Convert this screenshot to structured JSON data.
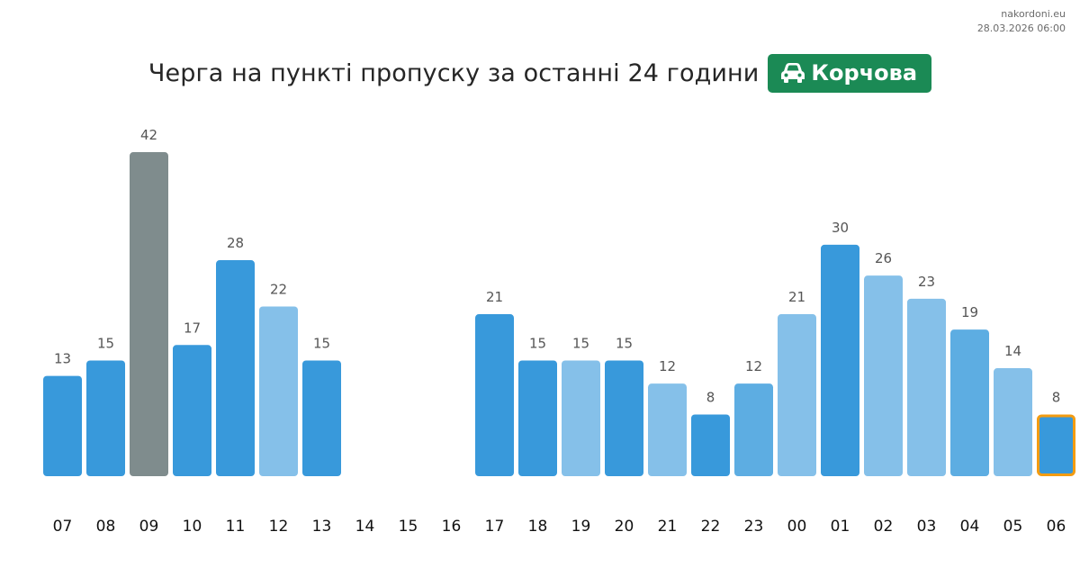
{
  "source": {
    "site": "nakordoni.eu",
    "timestamp": "28.03.2026 06:00"
  },
  "header": {
    "title": "Черга на пункті пропуску за останні 24 години",
    "badge_icon": "car-icon",
    "badge_label": "Корчова",
    "badge_color": "#1b8a55"
  },
  "chart_data": {
    "type": "bar",
    "title": "Черга на пункті пропуску за останні 24 години",
    "xlabel": "",
    "ylabel": "",
    "grid": false,
    "legend": "none",
    "categories": [
      "07",
      "08",
      "09",
      "10",
      "11",
      "12",
      "13",
      "14",
      "15",
      "16",
      "17",
      "18",
      "19",
      "20",
      "21",
      "22",
      "23",
      "00",
      "01",
      "02",
      "03",
      "04",
      "05",
      "06"
    ],
    "values": [
      13,
      15,
      42,
      17,
      28,
      22,
      15,
      null,
      null,
      null,
      21,
      15,
      15,
      15,
      12,
      8,
      12,
      21,
      30,
      26,
      23,
      19,
      14,
      8
    ],
    "bar_colors": [
      "#3899db",
      "#3899db",
      "#7f8c8d",
      "#3899db",
      "#3899db",
      "#85c0e9",
      "#3899db",
      null,
      null,
      null,
      "#3899db",
      "#3899db",
      "#85c0e9",
      "#3899db",
      "#85c0e9",
      "#3899db",
      "#5dade2",
      "#85c0e9",
      "#3899db",
      "#85c0e9",
      "#85c0e9",
      "#5dade2",
      "#85c0e9",
      "#3899db"
    ],
    "highlighted_category": "06",
    "highlight_color": "#f39c12"
  }
}
